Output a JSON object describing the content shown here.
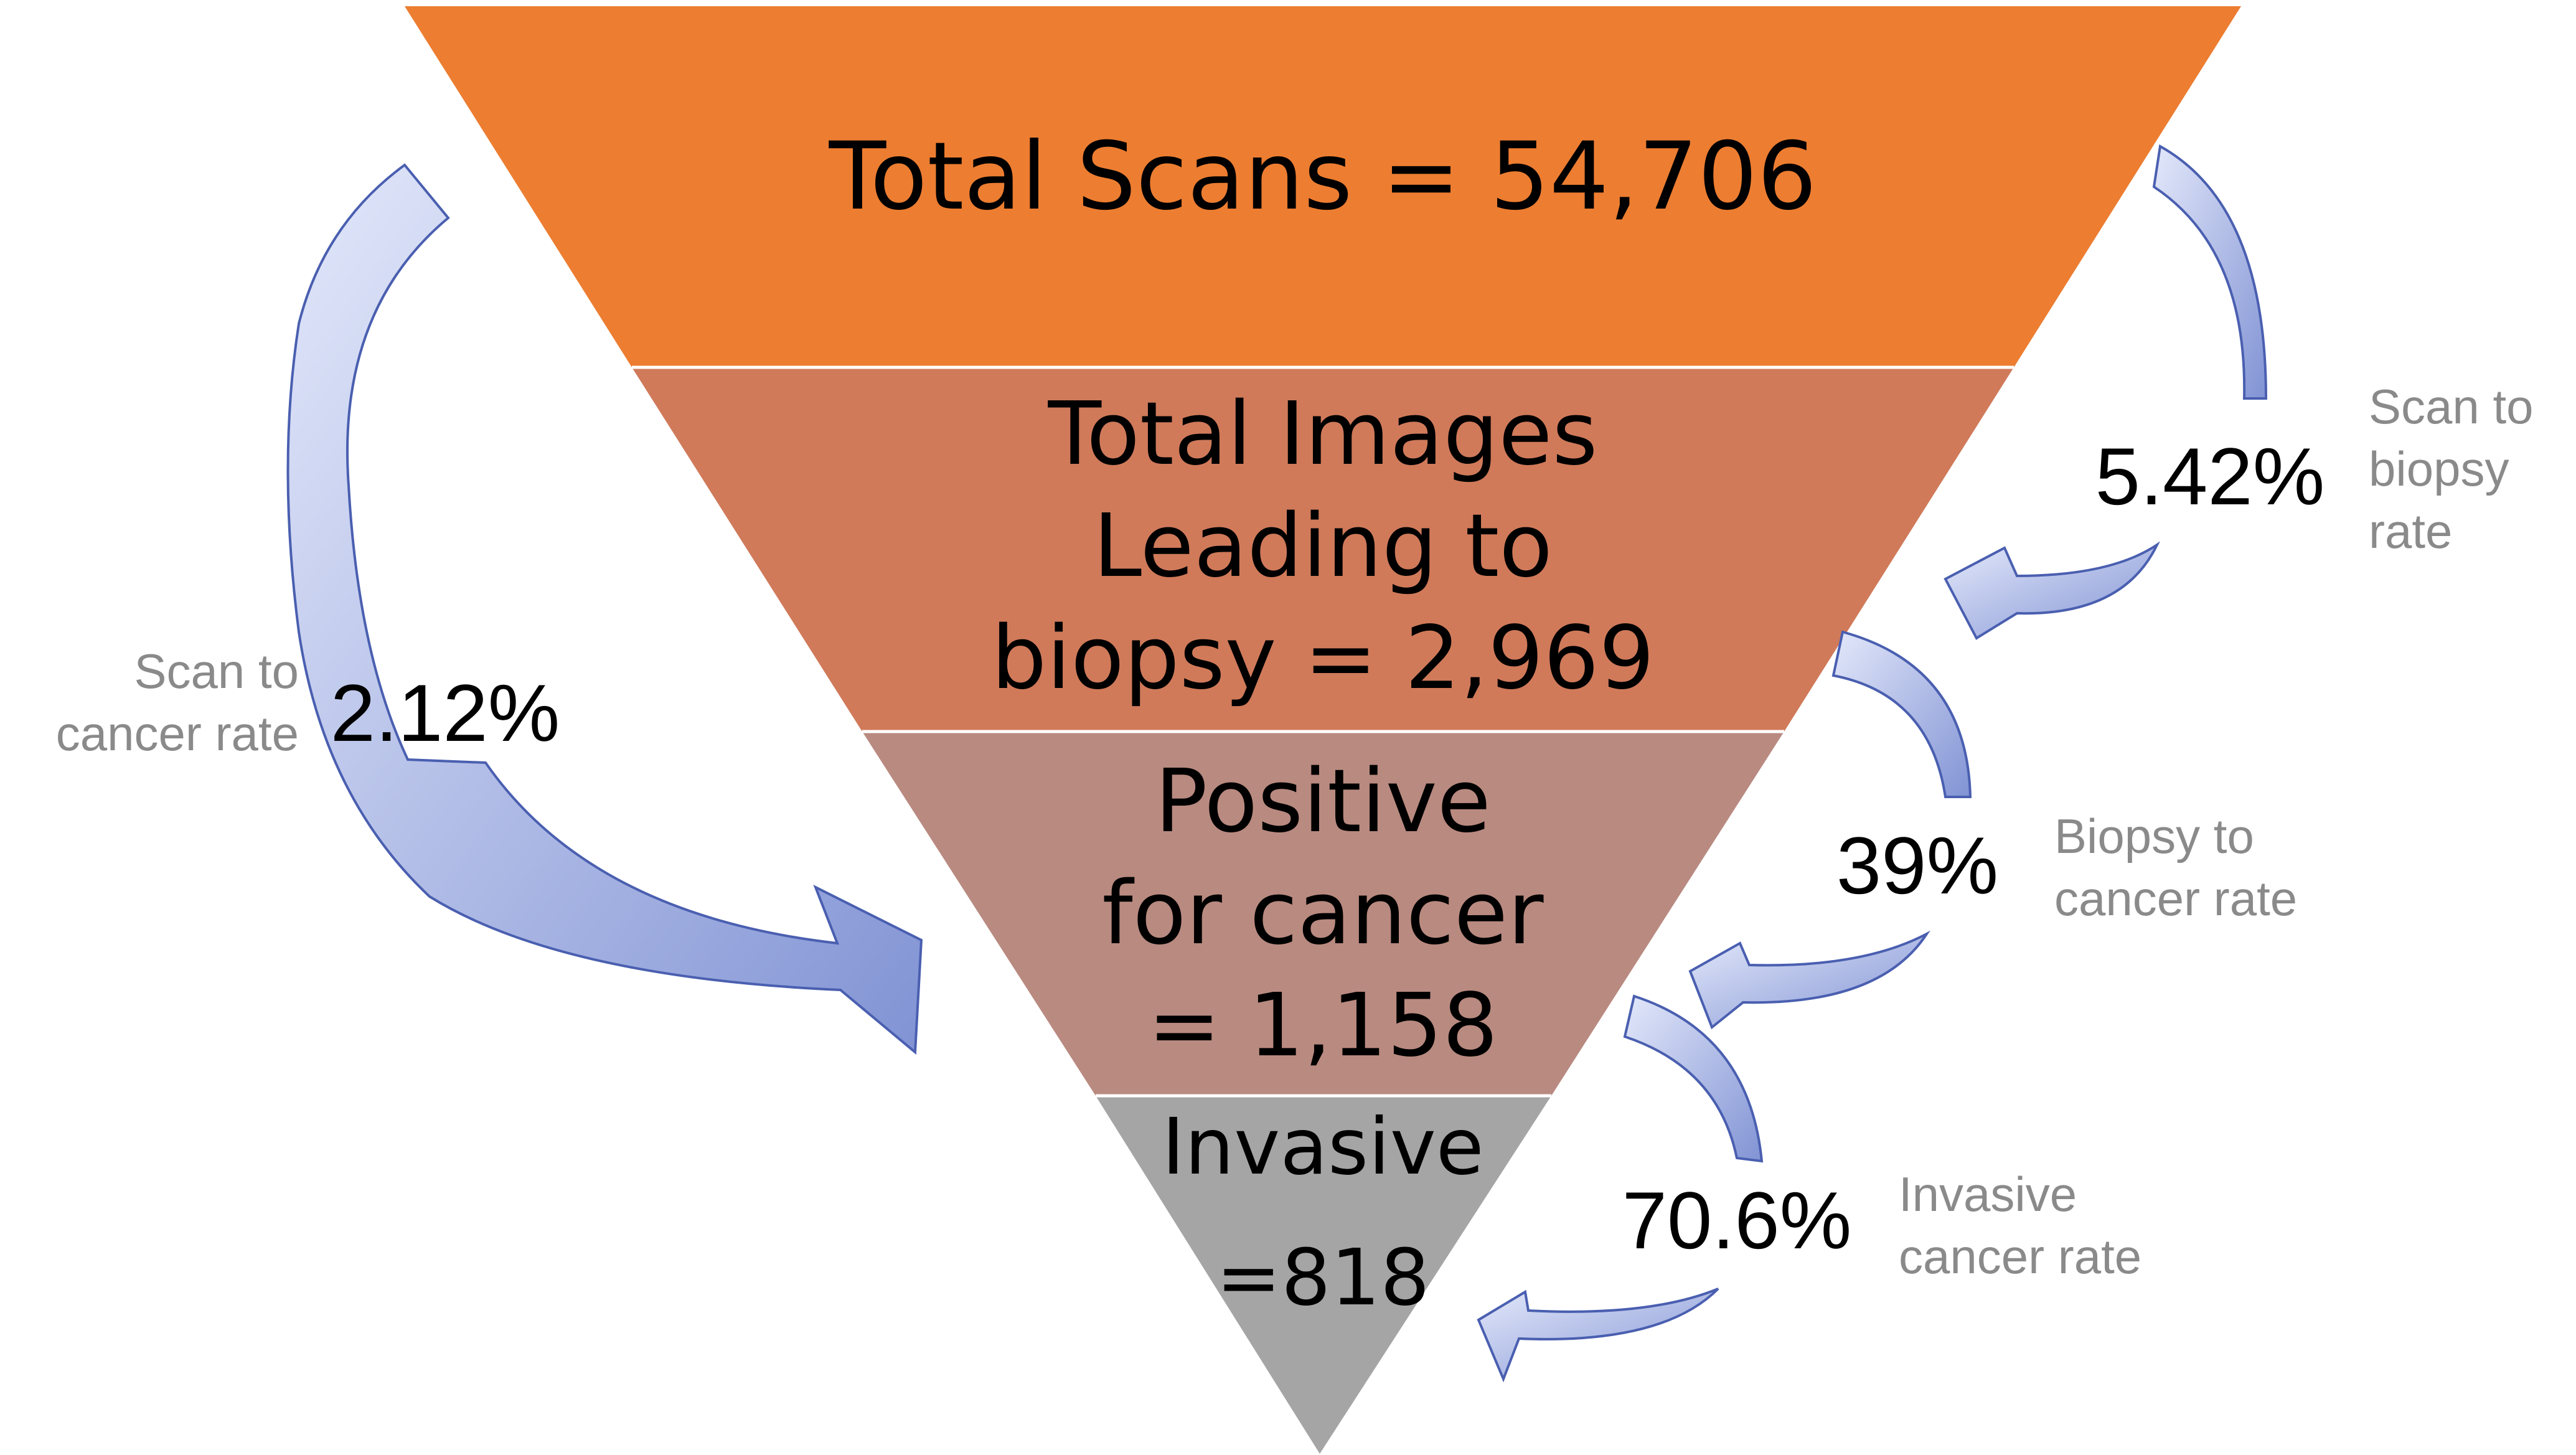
{
  "funnel": {
    "stages": [
      {
        "lines": [
          "Total Scans = 54,706"
        ],
        "color": "#ED7D31"
      },
      {
        "lines": [
          "Total Images",
          "Leading to",
          "biopsy = 2,969"
        ],
        "color": "#D07A5A"
      },
      {
        "lines": [
          "Positive",
          "for cancer",
          "= 1,158"
        ],
        "color": "#B98A80"
      },
      {
        "lines": [
          "Invasive",
          "=818"
        ],
        "color": "#A5A5A5"
      }
    ]
  },
  "rates": {
    "scan_to_cancer": {
      "value": "2.12%",
      "caption": [
        "Scan to",
        "cancer rate"
      ]
    },
    "scan_to_biopsy": {
      "value": "5.42%",
      "caption": [
        "Scan to",
        "biopsy",
        "rate"
      ]
    },
    "biopsy_to_cancer": {
      "value": "39%",
      "caption": [
        "Biopsy to",
        "cancer rate"
      ]
    },
    "invasive": {
      "value": "70.6%",
      "caption": [
        "Invasive",
        "cancer rate"
      ]
    }
  },
  "colors": {
    "arrow_light": "#E3E8FA",
    "arrow_dark": "#8193D4",
    "arrow_stroke": "#4A5FB0",
    "caption": "#8A8A8A",
    "divider": "#FFFFFF"
  }
}
